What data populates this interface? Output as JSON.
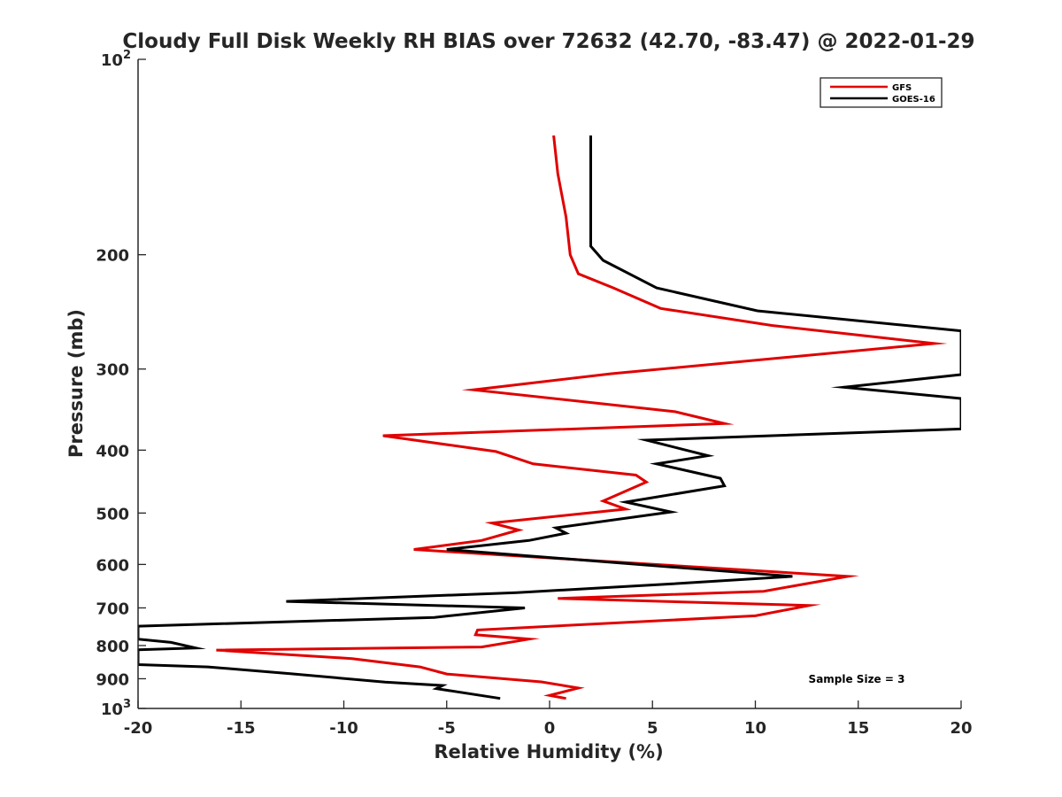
{
  "chart_data": {
    "type": "line",
    "title": "Cloudy Full Disk Weekly RH BIAS over 72632 (42.70, -83.47) @ 2022-01-29",
    "xlabel": "Relative Humidity (%)",
    "ylabel": "Pressure (mb)",
    "xlim": [
      -20,
      20
    ],
    "ylim": [
      100,
      1000
    ],
    "y_scale": "log",
    "y_reversed": true,
    "x_ticks": [
      "-20",
      "-15",
      "-10",
      "-5",
      "0",
      "5",
      "10",
      "15",
      "20"
    ],
    "y_ticks": [
      {
        "value": 100,
        "label": "10",
        "exp": "2"
      },
      {
        "value": 200,
        "label": "200",
        "exp": ""
      },
      {
        "value": 300,
        "label": "300",
        "exp": ""
      },
      {
        "value": 400,
        "label": "400",
        "exp": ""
      },
      {
        "value": 500,
        "label": "500",
        "exp": ""
      },
      {
        "value": 600,
        "label": "600",
        "exp": ""
      },
      {
        "value": 700,
        "label": "700",
        "exp": ""
      },
      {
        "value": 800,
        "label": "800",
        "exp": ""
      },
      {
        "value": 900,
        "label": "900",
        "exp": ""
      },
      {
        "value": 1000,
        "label": "10",
        "exp": "3"
      }
    ],
    "grid": false,
    "legend_position": "top-right",
    "annotation": "Sample Size = 3",
    "series": [
      {
        "name": "GFS",
        "color": "#e00000",
        "points": [
          [
            0.8,
            965
          ],
          [
            0.0,
            955
          ],
          [
            1.4,
            930
          ],
          [
            -0.4,
            910
          ],
          [
            -5.0,
            885
          ],
          [
            -6.3,
            863
          ],
          [
            -9.6,
            838
          ],
          [
            -16.2,
            813
          ],
          [
            -3.3,
            804
          ],
          [
            -1.0,
            782
          ],
          [
            -3.6,
            770
          ],
          [
            -3.5,
            757
          ],
          [
            10.0,
            720
          ],
          [
            12.6,
            694
          ],
          [
            0.4,
            677
          ],
          [
            10.4,
            660
          ],
          [
            14.5,
            626
          ],
          [
            -6.6,
            569
          ],
          [
            -3.3,
            551
          ],
          [
            -1.5,
            531
          ],
          [
            -2.8,
            518
          ],
          [
            3.7,
            493
          ],
          [
            2.6,
            479
          ],
          [
            4.7,
            448
          ],
          [
            4.2,
            437
          ],
          [
            -0.8,
            420
          ],
          [
            -2.6,
            402
          ],
          [
            -8.1,
            380
          ],
          [
            8.5,
            364
          ],
          [
            6.1,
            349
          ],
          [
            -3.7,
            323
          ],
          [
            3.0,
            305
          ],
          [
            18.7,
            274
          ],
          [
            10.8,
            257
          ],
          [
            5.4,
            242
          ],
          [
            3.1,
            225
          ],
          [
            1.4,
            214
          ],
          [
            1.0,
            200
          ],
          [
            0.8,
            175
          ],
          [
            0.4,
            150
          ],
          [
            0.2,
            131
          ]
        ]
      },
      {
        "name": "GOES-16",
        "color": "#000000",
        "points": [
          [
            -2.4,
            965
          ],
          [
            -5.5,
            932
          ],
          [
            -5.2,
            922
          ],
          [
            -8.0,
            911
          ],
          [
            -12.6,
            884
          ],
          [
            -16.6,
            863
          ],
          [
            -20.0,
            856
          ],
          [
            -20.0,
            812
          ],
          [
            -17.2,
            807
          ],
          [
            -18.4,
            791
          ],
          [
            -20.0,
            782
          ],
          [
            -20.0,
            747
          ],
          [
            -5.6,
            724
          ],
          [
            -1.2,
            700
          ],
          [
            -12.8,
            684
          ],
          [
            -1.6,
            663
          ],
          [
            5.9,
            643
          ],
          [
            11.8,
            626
          ],
          [
            -5.0,
            569
          ],
          [
            -1.0,
            551
          ],
          [
            0.8,
            537
          ],
          [
            0.3,
            527
          ],
          [
            5.9,
            498
          ],
          [
            3.7,
            481
          ],
          [
            8.5,
            454
          ],
          [
            8.3,
            442
          ],
          [
            5.2,
            420
          ],
          [
            7.7,
            408
          ],
          [
            4.7,
            386
          ],
          [
            20.0,
            371
          ],
          [
            20.0,
            333
          ],
          [
            14.3,
            320
          ],
          [
            20.0,
            306
          ],
          [
            20.0,
            262
          ],
          [
            10.1,
            244
          ],
          [
            5.2,
            225
          ],
          [
            2.6,
            204
          ],
          [
            2.0,
            194
          ],
          [
            2.0,
            175
          ],
          [
            2.0,
            150
          ],
          [
            2.0,
            131
          ]
        ]
      }
    ]
  }
}
